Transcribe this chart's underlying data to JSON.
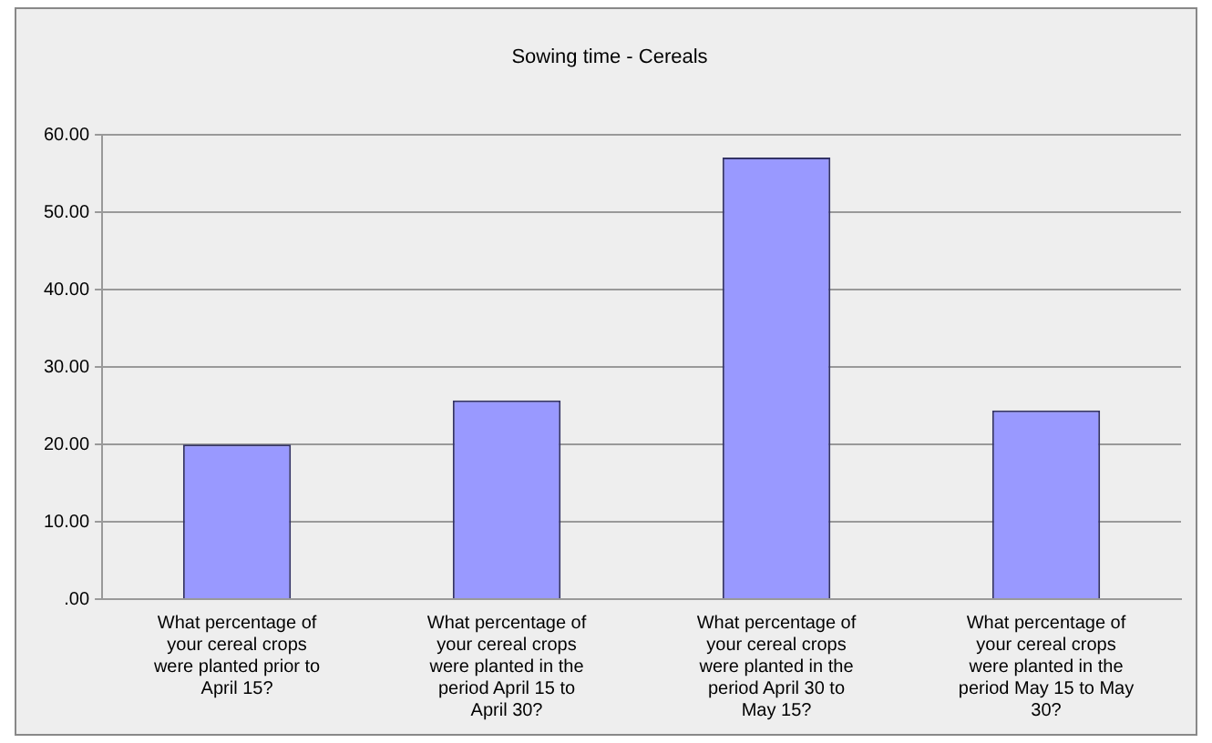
{
  "chart_data": {
    "type": "bar",
    "title": "Sowing time - Cereals",
    "categories": [
      "What percentage of your cereal crops were planted prior to April 15?",
      "What percentage of your cereal crops were planted in the period April 15 to April 30?",
      "What percentage of your cereal crops were planted in the period April 30 to May 15?",
      "What percentage of your cereal crops were planted in the period May 15 to May 30?"
    ],
    "values": [
      20.0,
      25.7,
      57.1,
      24.4
    ],
    "color": "#9999ff",
    "ylim": [
      0,
      60
    ],
    "yticks": [
      {
        "value": 0,
        "label": ".00"
      },
      {
        "value": 10,
        "label": "10.00"
      },
      {
        "value": 20,
        "label": "20.00"
      },
      {
        "value": 30,
        "label": "30.00"
      },
      {
        "value": 40,
        "label": "40.00"
      },
      {
        "value": 50,
        "label": "50.00"
      },
      {
        "value": 60,
        "label": "60.00"
      }
    ],
    "grid": "y"
  }
}
